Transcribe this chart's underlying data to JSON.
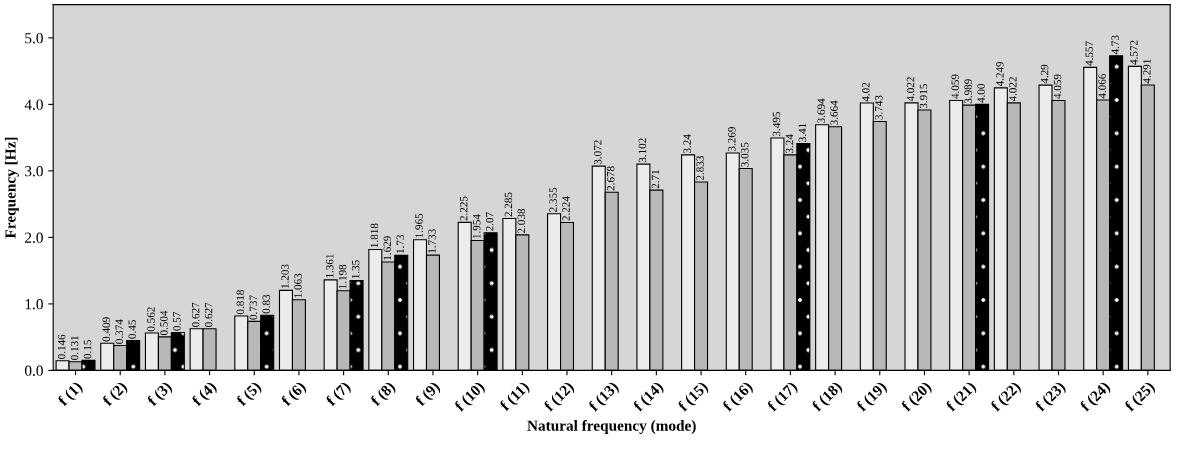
{
  "chart_data": {
    "type": "bar",
    "xlabel": "Natural frequency (mode)",
    "ylabel": "Frequency [Hz]",
    "categories": [
      "f (1)",
      "f (2)",
      "f (3)",
      "f (4)",
      "f (5)",
      "f (6)",
      "f (7)",
      "f (8)",
      "f (9)",
      "f (10)",
      "f (11)",
      "f (12)",
      "f (13)",
      "f (14)",
      "f (15)",
      "f (16)",
      "f (17)",
      "f (18)",
      "f (19)",
      "f (20)",
      "f (21)",
      "f (22)",
      "f (23)",
      "f (24)",
      "f (25)"
    ],
    "series": [
      {
        "color": "#ececec",
        "values": [
          0.146,
          0.409,
          0.562,
          0.627,
          0.818,
          1.203,
          1.361,
          1.818,
          1.965,
          2.225,
          2.285,
          2.355,
          3.072,
          3.102,
          3.24,
          3.269,
          3.495,
          3.694,
          4.02,
          4.022,
          4.059,
          4.249,
          4.29,
          4.557,
          4.572
        ],
        "value_labels": [
          "0.146",
          "0.409",
          "0.562",
          "0.627",
          "0.818",
          "1.203",
          "1.361",
          "1.818",
          "1.965",
          "2.225",
          "2.285",
          "2.355",
          "3.072",
          "3.102",
          "3.24",
          "3.269",
          "3.495",
          "3.694",
          "4.02",
          "4.022",
          "4.059",
          "4.249",
          "4.29",
          "4.557",
          "4.572"
        ]
      },
      {
        "color": "#b8b8b8",
        "values": [
          0.131,
          0.374,
          0.504,
          0.627,
          0.737,
          1.063,
          1.198,
          1.629,
          1.733,
          1.954,
          2.038,
          2.224,
          2.678,
          2.71,
          2.833,
          3.035,
          3.24,
          3.664,
          3.743,
          3.915,
          3.989,
          4.022,
          4.059,
          4.066,
          4.291
        ],
        "value_labels": [
          "0.131",
          "0.374",
          "0.504",
          "0.627",
          "0.737",
          "1.063",
          "1.198",
          "1.629",
          "1.733",
          "1.954",
          "2.038",
          "2.224",
          "2.678",
          "2.71",
          "2.833",
          "3.035",
          "3.24",
          "3.664",
          "3.743",
          "3.915",
          "3.989",
          "4.022",
          "4.059",
          "4.066",
          "4.291"
        ]
      },
      {
        "color": "#000000",
        "values": [
          0.15,
          0.45,
          0.57,
          null,
          0.83,
          null,
          1.35,
          1.73,
          null,
          2.07,
          null,
          null,
          null,
          null,
          null,
          null,
          3.41,
          null,
          null,
          null,
          4.0,
          null,
          null,
          4.73,
          null
        ],
        "value_labels": [
          "0.15",
          "0.45",
          "0.57",
          null,
          "0.83",
          null,
          "1.35",
          "1.73",
          null,
          "2.07",
          null,
          null,
          null,
          null,
          null,
          null,
          "3.41",
          null,
          null,
          null,
          "4.00",
          null,
          null,
          "4.73",
          null
        ]
      }
    ],
    "ylim": [
      0,
      5.5
    ],
    "yticks": [
      {
        "value": 0,
        "label": "0.0"
      },
      {
        "value": 1,
        "label": "1.0"
      },
      {
        "value": 2,
        "label": "2.0"
      },
      {
        "value": 3,
        "label": "3.0"
      },
      {
        "value": 4,
        "label": "4.0"
      },
      {
        "value": 5,
        "label": "5.0"
      }
    ],
    "grid": false,
    "legend": false
  }
}
